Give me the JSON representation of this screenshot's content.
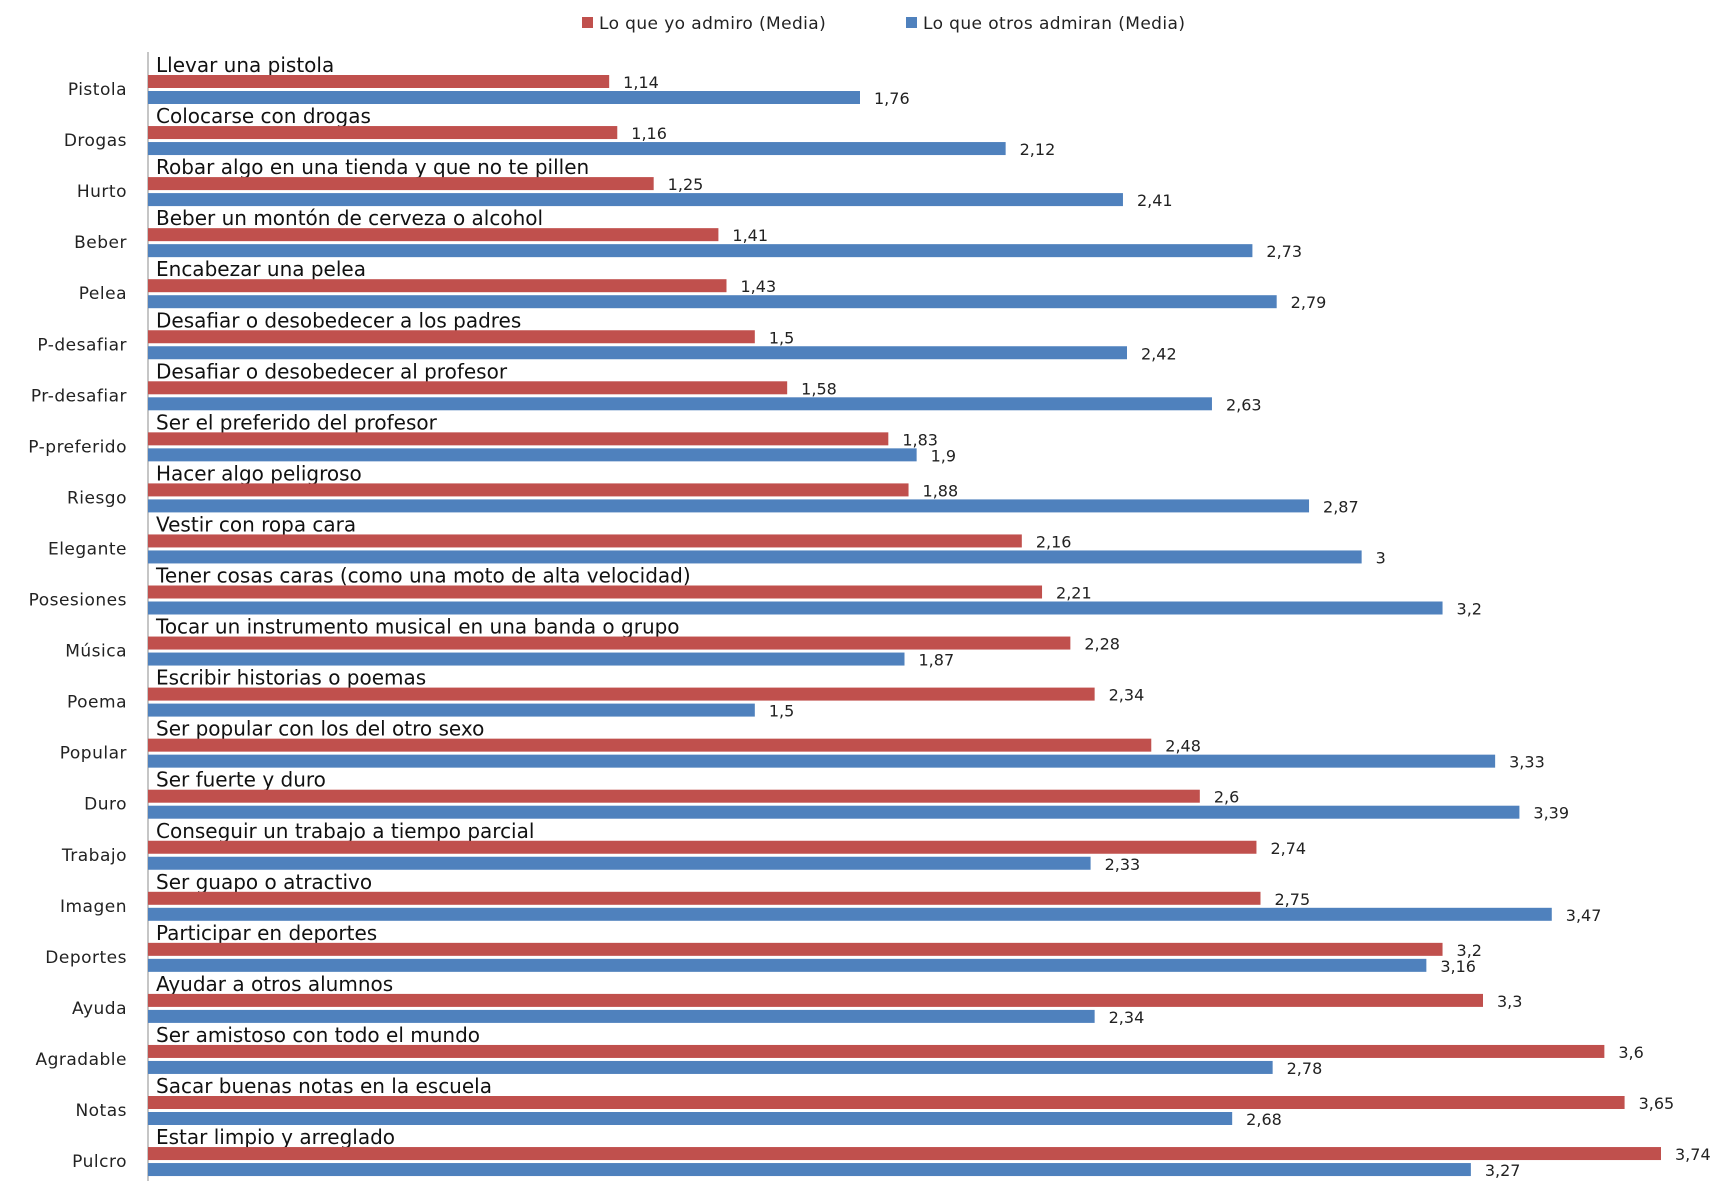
{
  "chart_data": {
    "type": "bar",
    "orientation": "horizontal",
    "title": "",
    "xlabel": "",
    "ylabel": "",
    "xlim": [
      0,
      3.74
    ],
    "grid": false,
    "legend_position": "top",
    "series": [
      {
        "name": "Lo que yo admiro (Media)",
        "color": "#c0504d",
        "values": [
          1.14,
          1.16,
          1.25,
          1.41,
          1.43,
          1.5,
          1.58,
          1.83,
          1.88,
          2.16,
          2.21,
          2.28,
          2.34,
          2.48,
          2.6,
          2.74,
          2.75,
          3.2,
          3.3,
          3.6,
          3.65,
          3.74
        ],
        "value_labels": [
          "1,14",
          "1,16",
          "1,25",
          "1,41",
          "1,43",
          "1,5",
          "1,58",
          "1,83",
          "1,88",
          "2,16",
          "2,21",
          "2,28",
          "2,34",
          "2,48",
          "2,6",
          "2,74",
          "2,75",
          "3,2",
          "3,3",
          "3,6",
          "3,65",
          "3,74"
        ]
      },
      {
        "name": "Lo que otros admiran (Media)",
        "color": "#4f81bd",
        "values": [
          1.76,
          2.12,
          2.41,
          2.73,
          2.79,
          2.42,
          2.63,
          1.9,
          2.87,
          3,
          3.2,
          1.87,
          1.5,
          3.33,
          3.39,
          2.33,
          3.47,
          3.16,
          2.34,
          2.78,
          2.68,
          3.27
        ],
        "value_labels": [
          "1,76",
          "2,12",
          "2,41",
          "2,73",
          "2,79",
          "2,42",
          "2,63",
          "1,9",
          "2,87",
          "3",
          "3,2",
          "1,87",
          "1,5",
          "3,33",
          "3,39",
          "2,33",
          "3,47",
          "3,16",
          "2,34",
          "2,78",
          "2,68",
          "3,27"
        ]
      }
    ],
    "categories": [
      "Pistola",
      "Drogas",
      "Hurto",
      "Beber",
      "Pelea",
      "P-desafiar",
      "Pr-desafiar",
      "P-preferido",
      "Riesgo",
      "Elegante",
      "Posesiones",
      "Música",
      "Poema",
      "Popular",
      "Duro",
      "Trabajo",
      "Imagen",
      "Deportes",
      "Ayuda",
      "Agradable",
      "Notas",
      "Pulcro"
    ],
    "descriptions": [
      "Llevar una pistola",
      "Colocarse con drogas",
      "Robar algo en una tienda y que no te pillen",
      "Beber un montón de cerveza o alcohol",
      "Encabezar una pelea",
      "Desafiar o desobedecer a los padres",
      "Desafiar o desobedecer al profesor",
      "Ser el preferido del profesor",
      "Hacer algo peligroso",
      "Vestir con ropa cara",
      "Tener cosas caras (como una moto de alta velocidad)",
      "Tocar un instrumento musical en una banda o grupo",
      "Escribir historias o poemas",
      "Ser popular con los del otro sexo",
      "Ser fuerte y duro",
      "Conseguir un trabajo a tiempo parcial",
      "Ser guapo o atractivo",
      "Participar en deportes",
      "Ayudar a otros alumnos",
      "Ser amistoso con todo el mundo",
      "Sacar buenas notas en la escuela",
      "Estar limpio y arreglado"
    ]
  }
}
